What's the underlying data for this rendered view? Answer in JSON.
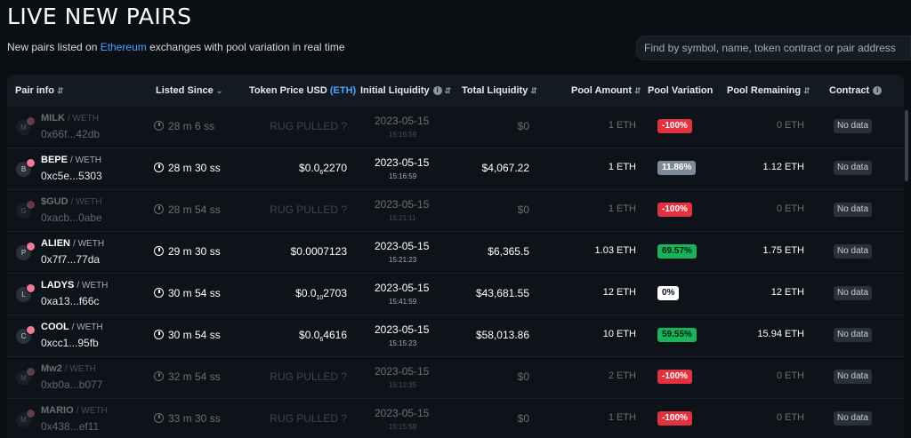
{
  "page": {
    "title": "LIVE NEW PAIRS",
    "subtitle_pre": "New pairs listed on ",
    "subtitle_link": "Ethereum",
    "subtitle_post": " exchanges with pool variation in real time"
  },
  "search": {
    "placeholder": "Find by symbol, name, token contract or pair address"
  },
  "headers": {
    "pair_info": "Pair info",
    "listed_since": "Listed Since",
    "token_price": "Token Price USD",
    "token_price_unit": "(ETH)",
    "initial_liquidity": "Initial Liquidity",
    "total_liquidity": "Total Liquidity",
    "pool_amount": "Pool Amount",
    "pool_variation": "Pool Variation",
    "pool_remaining": "Pool Remaining",
    "contract": "Contract"
  },
  "icons": {
    "sort": "sort-icon",
    "info": "info-icon",
    "clock": "clock-icon",
    "chevron": "chevron-down-icon"
  },
  "colors": {
    "accent": "#4aa3ff",
    "negative": "#e0323f",
    "positive": "#19b35a",
    "neutral": "#7e8a98"
  },
  "rows": [
    {
      "initial": "M",
      "symbol": "MILK",
      "base": "/ WETH",
      "address": "0x66f...42db",
      "since": "28 m 6 ss",
      "price_a": "RUG PULLED ?",
      "price_sub": "",
      "price_b": "",
      "rug": true,
      "date": "2023-05-15",
      "time": "15:16:59",
      "total_liquidity": "$0",
      "pool_amount": "1 ETH",
      "variation": "-100%",
      "variation_kind": "red",
      "remaining": "0 ETH",
      "contract": "No data"
    },
    {
      "initial": "B",
      "symbol": "BEPE",
      "base": "/ WETH",
      "address": "0xc5e...5303",
      "since": "28 m 30 ss",
      "price_a": "$0.0",
      "price_sub": "6",
      "price_b": "2270",
      "rug": false,
      "date": "2023-05-15",
      "time": "15:16:59",
      "total_liquidity": "$4,067.22",
      "pool_amount": "1 ETH",
      "variation": "11.86%",
      "variation_kind": "grey",
      "remaining": "1.12 ETH",
      "contract": "No data"
    },
    {
      "initial": "G",
      "symbol": "$GUD",
      "base": "/ WETH",
      "address": "0xacb...0abe",
      "since": "28 m 54 ss",
      "price_a": "RUG PULLED ?",
      "price_sub": "",
      "price_b": "",
      "rug": true,
      "date": "2023-05-15",
      "time": "15:21:11",
      "total_liquidity": "$0",
      "pool_amount": "1 ETH",
      "variation": "-100%",
      "variation_kind": "red",
      "remaining": "0 ETH",
      "contract": "No data"
    },
    {
      "initial": "P",
      "symbol": "ALIEN",
      "base": "/ WETH",
      "address": "0x7f7...77da",
      "since": "29 m 30 ss",
      "price_a": "$0.0007123",
      "price_sub": "",
      "price_b": "",
      "rug": false,
      "date": "2023-05-15",
      "time": "15:21:23",
      "total_liquidity": "$6,365.5",
      "pool_amount": "1.03 ETH",
      "variation": "69.57%",
      "variation_kind": "green",
      "remaining": "1.75 ETH",
      "contract": "No data"
    },
    {
      "initial": "L",
      "symbol": "LADYS",
      "base": "/ WETH",
      "address": "0xa13...f66c",
      "since": "30 m 54 ss",
      "price_a": "$0.0",
      "price_sub": "10",
      "price_b": "2703",
      "rug": false,
      "date": "2023-05-15",
      "time": "15:41:59",
      "total_liquidity": "$43,681.55",
      "pool_amount": "12 ETH",
      "variation": "0%",
      "variation_kind": "white",
      "remaining": "12 ETH",
      "contract": "No data"
    },
    {
      "initial": "C",
      "symbol": "COOL",
      "base": "/ WETH",
      "address": "0xcc1...95fb",
      "since": "30 m 54 ss",
      "price_a": "$0.0",
      "price_sub": "6",
      "price_b": "4616",
      "rug": false,
      "date": "2023-05-15",
      "time": "15:15:23",
      "total_liquidity": "$58,013.86",
      "pool_amount": "10 ETH",
      "variation": "59.55%",
      "variation_kind": "green",
      "remaining": "15.94 ETH",
      "contract": "No data"
    },
    {
      "initial": "M",
      "symbol": "Mw2",
      "base": "/ WETH",
      "address": "0xb0a...b077",
      "since": "32 m 54 ss",
      "price_a": "RUG PULLED ?",
      "price_sub": "",
      "price_b": "",
      "rug": true,
      "date": "2023-05-15",
      "time": "15:12:35",
      "total_liquidity": "$0",
      "pool_amount": "2 ETH",
      "variation": "-100%",
      "variation_kind": "red",
      "remaining": "0 ETH",
      "contract": "No data"
    },
    {
      "initial": "M",
      "symbol": "MARIO",
      "base": "/ WETH",
      "address": "0x438...ef11",
      "since": "33 m 30 ss",
      "price_a": "RUG PULLED ?",
      "price_sub": "",
      "price_b": "",
      "rug": true,
      "date": "2023-05-15",
      "time": "15:15:59",
      "total_liquidity": "$0",
      "pool_amount": "1 ETH",
      "variation": "-100%",
      "variation_kind": "red",
      "remaining": "0 ETH",
      "contract": "No data"
    }
  ]
}
